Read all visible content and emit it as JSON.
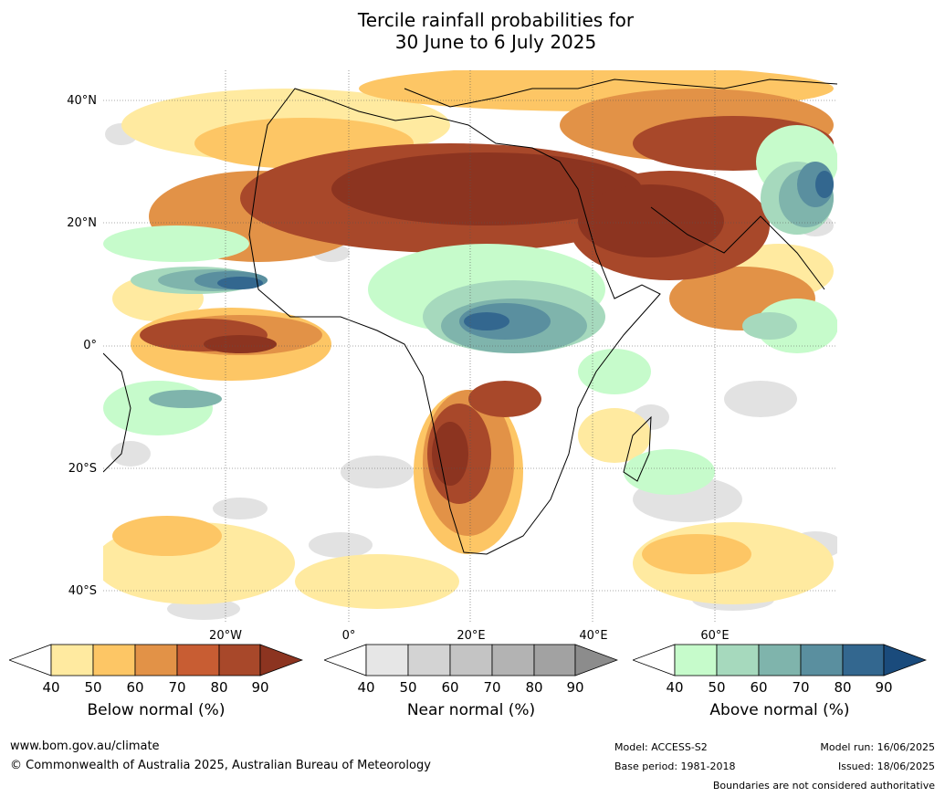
{
  "title_line1": "Tercile rainfall probabilities for",
  "title_line2": "30 June to 6 July 2025",
  "lat_labels": [
    "40°N",
    "20°N",
    "0°",
    "20°S",
    "40°S"
  ],
  "lon_labels": [
    "20°W",
    "0°",
    "20°E",
    "40°E",
    "60°E"
  ],
  "colorbars": [
    {
      "label": "Below normal (%)",
      "ticks": [
        "40",
        "50",
        "60",
        "70",
        "80",
        "90"
      ],
      "colors": [
        "#ffffff",
        "#ffeaa0",
        "#fdc665",
        "#e29247",
        "#c85d33",
        "#a8482a",
        "#8c3420"
      ]
    },
    {
      "label": "Near normal (%)",
      "ticks": [
        "40",
        "50",
        "60",
        "70",
        "80",
        "90"
      ],
      "colors": [
        "#ffffff",
        "#e6e6e6",
        "#d3d3d3",
        "#c4c4c4",
        "#b3b3b3",
        "#a2a2a2",
        "#8c8c8c"
      ]
    },
    {
      "label": "Above normal (%)",
      "ticks": [
        "40",
        "50",
        "60",
        "70",
        "80",
        "90"
      ],
      "colors": [
        "#ffffff",
        "#c6fbcb",
        "#a6d9bd",
        "#7fb4ac",
        "#5a8f9f",
        "#33678f",
        "#1a4b7c"
      ]
    }
  ],
  "footer": {
    "website": "www.bom.gov.au/climate",
    "copyright": "© Commonwealth of Australia 2025, Australian Bureau of Meteorology",
    "model": "Model: ACCESS-S2",
    "base_period": "Base period: 1981-2018",
    "model_run": "Model run: 16/06/2025",
    "issued": "Issued: 18/06/2025",
    "disclaimer": "Boundaries are not considered authoritative"
  }
}
